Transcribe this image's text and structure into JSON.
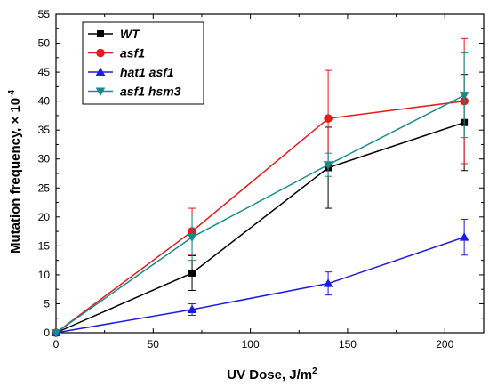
{
  "chart_data": {
    "type": "line",
    "xlabel": "UV Dose, J/m",
    "xlabel_superscript": "2",
    "ylabel": "Mutation frequency, × 10",
    "ylabel_superscript": "-4",
    "xlim": [
      0,
      220
    ],
    "ylim": [
      0,
      55
    ],
    "xticks": [
      0,
      50,
      100,
      150,
      200
    ],
    "yticks": [
      0,
      5,
      10,
      15,
      20,
      25,
      30,
      35,
      40,
      45,
      50,
      55
    ],
    "x": [
      0,
      70,
      140,
      210
    ],
    "legend_position": "top-left",
    "grid": false,
    "series": [
      {
        "name": "WT",
        "color": "#000000",
        "marker": "square",
        "values": [
          0,
          10.3,
          28.5,
          36.3
        ],
        "errors": [
          0,
          3,
          7,
          8.3
        ]
      },
      {
        "name": "asf1",
        "color": "#e8191b",
        "marker": "circle",
        "values": [
          0,
          17.5,
          37,
          40
        ],
        "errors": [
          0,
          4,
          8.3,
          10.8
        ]
      },
      {
        "name": "hat1 asf1",
        "color": "#1c1ce0",
        "marker": "triangle-up",
        "values": [
          0,
          4,
          8.5,
          16.5
        ],
        "errors": [
          0,
          1,
          2,
          3.1
        ]
      },
      {
        "name": "asf1 hsm3",
        "color": "#148c8c",
        "marker": "triangle-down",
        "values": [
          0,
          16.5,
          29,
          41
        ],
        "errors": [
          0,
          4,
          2,
          7.3
        ]
      }
    ]
  }
}
